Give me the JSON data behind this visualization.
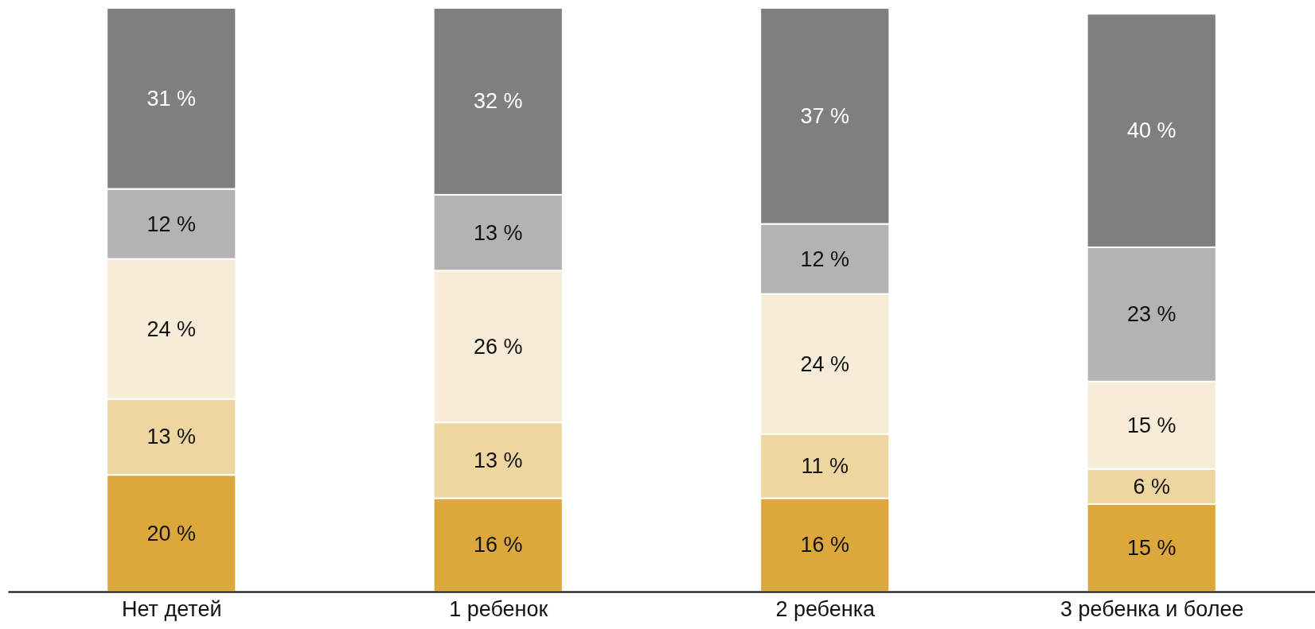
{
  "chart_data": {
    "type": "bar",
    "stacked": true,
    "tick_labels": "x",
    "categories": [
      "Нет детей",
      "1 ребенок",
      "2 ребенка",
      "3 ребенка и более"
    ],
    "ylim": [
      0,
      100
    ],
    "series": [
      {
        "color": "#dca83c",
        "values": [
          20,
          16,
          16,
          15
        ],
        "value_labels": [
          "20 %",
          "16 %",
          "16 %",
          "15 %"
        ]
      },
      {
        "color": "#edd6a0",
        "values": [
          13,
          13,
          11,
          6
        ],
        "value_labels": [
          "13 %",
          "13 %",
          "11 %",
          "6 %"
        ]
      },
      {
        "color": "#f7ecd7",
        "values": [
          24,
          26,
          24,
          15
        ],
        "value_labels": [
          "24 %",
          "26 %",
          "24 %",
          "15 %"
        ]
      },
      {
        "color": "#b3b3b3",
        "values": [
          12,
          13,
          12,
          23
        ],
        "value_labels": [
          "12 %",
          "13 %",
          "12 %",
          "23 %"
        ]
      },
      {
        "color": "#7f7f7f",
        "values": [
          31,
          32,
          37,
          40
        ],
        "value_labels": [
          "31 %",
          "32 %",
          "37 %",
          "40 %"
        ]
      }
    ]
  }
}
